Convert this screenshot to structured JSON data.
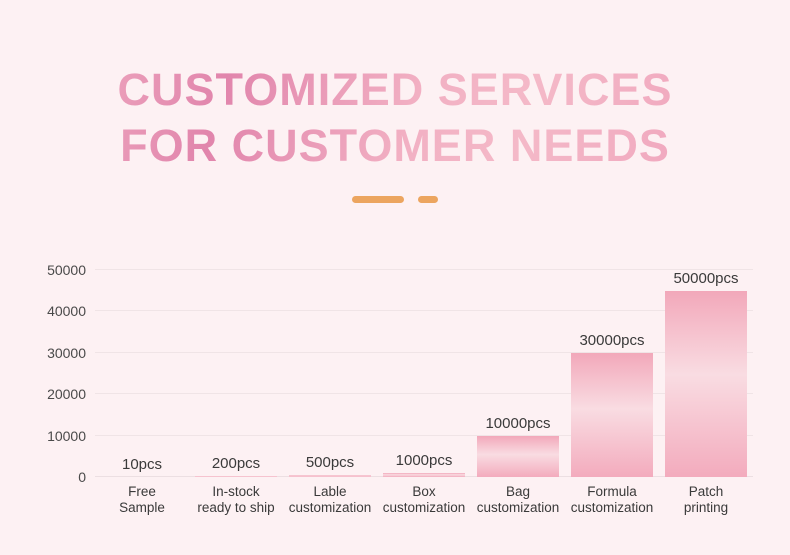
{
  "page": {
    "background_color": "#fdf1f3",
    "title_line1": "CUSTOMIZED SERVICES",
    "title_line2": "FOR CUSTOMER NEEDS",
    "title_gradient": [
      "#f5bac9",
      "#e185ac",
      "#f2b0c3",
      "#ee9db8"
    ],
    "accent_dash_color": "#eca55f"
  },
  "chart_data": {
    "type": "bar",
    "title": "CUSTOMIZED SERVICES FOR CUSTOMER NEEDS",
    "categories": [
      "Free\nSample",
      "In-stock\nready to ship",
      "Lable\ncustomization",
      "Box\ncustomization",
      "Bag\ncustomization",
      "Formula\ncustomization",
      "Patch\nprinting"
    ],
    "values": [
      10,
      200,
      500,
      1000,
      10000,
      30000,
      50000
    ],
    "value_labels": [
      "10pcs",
      "200pcs",
      "500pcs",
      "1000pcs",
      "10000pcs",
      "30000pcs",
      "50000pcs"
    ],
    "xlabel": "",
    "ylabel": "",
    "ylim": [
      0,
      50000
    ],
    "yticks": [
      0,
      10000,
      20000,
      30000,
      40000,
      50000
    ],
    "grid": true,
    "legend": false,
    "bar_gradient": [
      "#f2a8ba",
      "#f9dce2",
      "#f3abbd"
    ],
    "gridline_color": "#f0e4e6",
    "tick_label_color": "#4a4a4a",
    "data_label_color": "#3a3a3a"
  }
}
